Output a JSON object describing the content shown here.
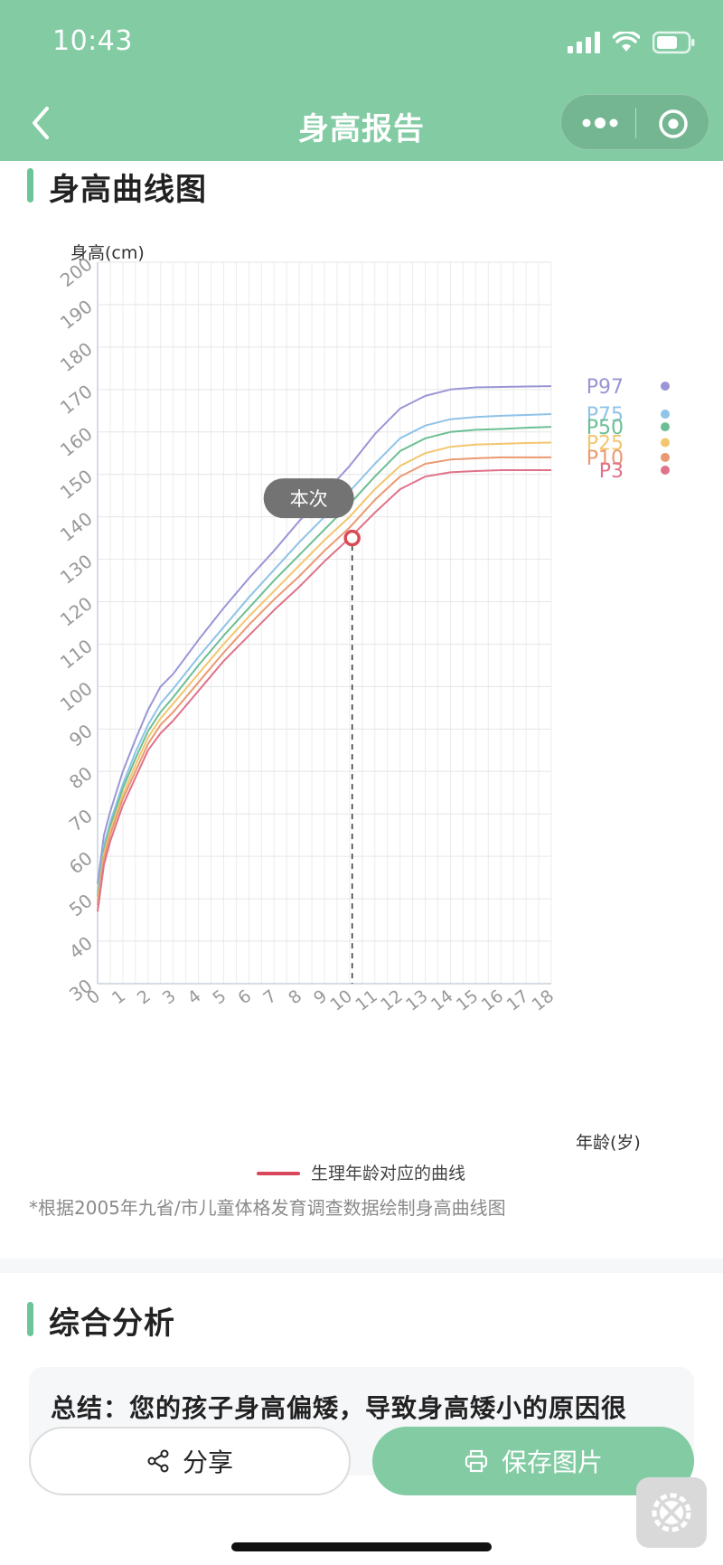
{
  "status": {
    "time": "10:43"
  },
  "nav": {
    "title": "身高报告",
    "back_icon": "chevron-left-icon",
    "more_icon": "more-dots-icon",
    "close_icon": "target-close-icon"
  },
  "height_section": {
    "title": "身高曲线图"
  },
  "chart_data": {
    "type": "line",
    "ylabel": "身高(cm)",
    "xlabel": "年龄(岁)",
    "ylim": [
      30,
      200
    ],
    "xlim": [
      0,
      18
    ],
    "y_ticks": [
      30,
      40,
      50,
      60,
      70,
      80,
      90,
      100,
      110,
      120,
      130,
      140,
      150,
      160,
      170,
      180,
      190,
      200
    ],
    "x_ticks": [
      0,
      1,
      2,
      3,
      4,
      5,
      6,
      7,
      8,
      9,
      10,
      11,
      12,
      13,
      14,
      15,
      16,
      17,
      18
    ],
    "grid": true,
    "x": [
      0,
      0.25,
      0.5,
      1,
      1.5,
      2,
      2.5,
      3,
      4,
      5,
      6,
      7,
      8,
      9,
      10,
      11,
      12,
      13,
      14,
      15,
      16,
      17,
      18
    ],
    "series": [
      {
        "name": "P97",
        "color": "#9a96d6",
        "values": [
          53.5,
          65,
          70.5,
          80,
          87.5,
          94.5,
          100,
          103,
          111,
          118.5,
          125.5,
          132,
          139,
          145.5,
          152,
          159.5,
          165.5,
          168.5,
          170,
          170.5,
          170.6,
          170.7,
          170.8
        ]
      },
      {
        "name": "P75",
        "color": "#8fc3e8",
        "values": [
          51.5,
          62.5,
          68,
          77,
          84.5,
          91,
          96,
          99.5,
          107,
          114,
          121,
          127.5,
          134,
          140,
          146,
          152.5,
          158.5,
          161.5,
          163,
          163.5,
          163.8,
          164,
          164.2
        ]
      },
      {
        "name": "P50",
        "color": "#6cbf94",
        "values": [
          50.5,
          61.5,
          67,
          76,
          83,
          89.5,
          94,
          97.5,
          105,
          112,
          118.5,
          125,
          131,
          137,
          143,
          149.5,
          155.5,
          158.5,
          160,
          160.5,
          160.7,
          161,
          161.2
        ]
      },
      {
        "name": "P25",
        "color": "#f2c66e",
        "values": [
          49.5,
          60.5,
          66,
          74.5,
          81.5,
          88,
          92.5,
          96,
          103,
          110,
          116.5,
          122.5,
          128.5,
          134.5,
          140,
          146.5,
          152,
          155,
          156.5,
          157,
          157.2,
          157.4,
          157.5
        ]
      },
      {
        "name": "P10",
        "color": "#ea9a72",
        "values": [
          48.5,
          59.5,
          65,
          73.5,
          80,
          86.5,
          91,
          94,
          101,
          108,
          114.5,
          120.5,
          126,
          132,
          137.5,
          144,
          149.5,
          152.5,
          153.5,
          153.8,
          154,
          154,
          154
        ]
      },
      {
        "name": "P3",
        "color": "#e0728a",
        "values": [
          47,
          58,
          63.5,
          72,
          78.5,
          85,
          89,
          92,
          99,
          106,
          112,
          118,
          123.5,
          129.5,
          135,
          141,
          146.5,
          149.5,
          150.5,
          150.8,
          151,
          151,
          151
        ]
      }
    ],
    "marker": {
      "label": "本次",
      "age": 10.1,
      "height": 135,
      "color": "#d84a55"
    }
  },
  "legend": {
    "text": "生理年龄对应的曲线",
    "color": "#d8475c"
  },
  "footnote": "*根据2005年九省/市儿童体格发育调查数据绘制身高曲线图",
  "analysis_section": {
    "title": "综合分析"
  },
  "summary": {
    "text": "总结：您的孩子身高偏矮，导致身高矮小的原因很"
  },
  "actions": {
    "share_label": "分享",
    "save_label": "保存图片",
    "share_icon": "share-icon",
    "save_icon": "printer-icon"
  },
  "floating_tool_icon": "tools-icon"
}
